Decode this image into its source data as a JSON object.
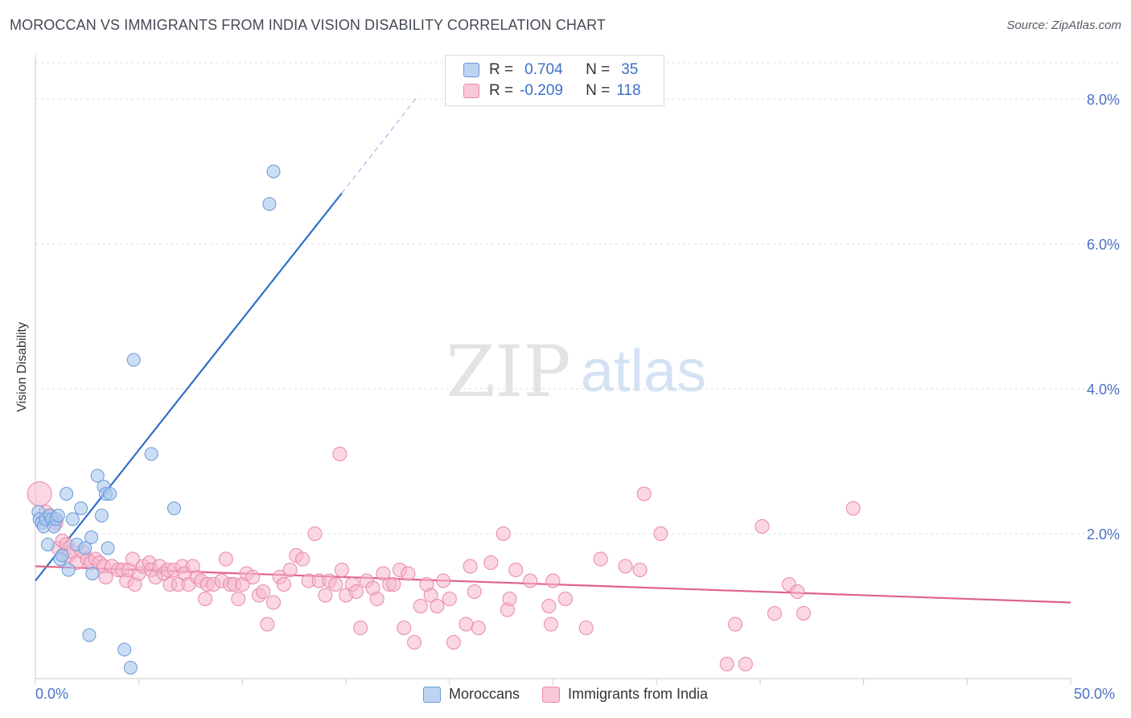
{
  "title": "MOROCCAN VS IMMIGRANTS FROM INDIA VISION DISABILITY CORRELATION CHART",
  "source": "Source: ZipAtlas.com",
  "watermark": {
    "zip": "ZIP",
    "atlas": "atlas"
  },
  "colors": {
    "blue_fill": "#a9c6ee",
    "blue_stroke": "#6b9ad8",
    "blue_line": "#2f6fcc",
    "pink_fill": "#f6b7cb",
    "pink_stroke": "#e889a8",
    "pink_line": "#e0628e",
    "tick_text": "#4a72c4",
    "grid": "#dcdcdc"
  },
  "legend": {
    "rows": [
      {
        "r_label": "R =",
        "r_value": "0.704",
        "n_label": "N =",
        "n_value": "35"
      },
      {
        "r_label": "R =",
        "r_value": "-0.209",
        "n_label": "N =",
        "n_value": "118"
      }
    ]
  },
  "bottom_legend": {
    "series1": "Moroccans",
    "series2": "Immigrants from India"
  },
  "chart_data": {
    "type": "scatter",
    "title": "MOROCCAN VS IMMIGRANTS FROM INDIA VISION DISABILITY CORRELATION CHART",
    "xlabel": "",
    "ylabel": "Vision Disability",
    "xlim": [
      0,
      50
    ],
    "ylim": [
      0,
      8.5
    ],
    "x_tick_labels": [
      "0.0%",
      "50.0%"
    ],
    "y_ticks": [
      2,
      4,
      6,
      8
    ],
    "y_tick_labels": [
      "2.0%",
      "4.0%",
      "6.0%",
      "8.0%"
    ],
    "grid": true,
    "series": [
      {
        "name": "Moroccans",
        "r": 0.704,
        "n": 35,
        "trend": {
          "x0": 0,
          "y0": 1.35,
          "x1": 14.8,
          "y1": 6.7,
          "dash_x1": 18.5,
          "dash_y1": 8.05
        },
        "points": [
          [
            0.15,
            2.3
          ],
          [
            0.2,
            2.2
          ],
          [
            0.3,
            2.15
          ],
          [
            0.4,
            2.1
          ],
          [
            0.5,
            2.2
          ],
          [
            0.6,
            1.85
          ],
          [
            0.7,
            2.25
          ],
          [
            0.8,
            2.2
          ],
          [
            0.9,
            2.1
          ],
          [
            1.0,
            2.2
          ],
          [
            1.1,
            2.25
          ],
          [
            1.2,
            1.65
          ],
          [
            1.3,
            1.7
          ],
          [
            1.5,
            2.55
          ],
          [
            1.6,
            1.5
          ],
          [
            1.8,
            2.2
          ],
          [
            2.0,
            1.85
          ],
          [
            2.2,
            2.35
          ],
          [
            2.4,
            1.8
          ],
          [
            2.6,
            0.6
          ],
          [
            2.7,
            1.95
          ],
          [
            2.75,
            1.45
          ],
          [
            3.0,
            2.8
          ],
          [
            3.2,
            2.25
          ],
          [
            3.3,
            2.65
          ],
          [
            3.4,
            2.55
          ],
          [
            3.5,
            1.8
          ],
          [
            3.6,
            2.55
          ],
          [
            4.3,
            0.4
          ],
          [
            4.6,
            0.15
          ],
          [
            4.75,
            4.4
          ],
          [
            5.6,
            3.1
          ],
          [
            6.7,
            2.35
          ],
          [
            11.3,
            6.55
          ],
          [
            11.5,
            7.0
          ]
        ]
      },
      {
        "name": "Immigrants from India",
        "r": -0.209,
        "n": 118,
        "trend": {
          "x0": 0,
          "y0": 1.55,
          "x1": 50,
          "y1": 1.05
        },
        "points": [
          [
            0.2,
            2.55
          ],
          [
            0.5,
            2.3
          ],
          [
            0.7,
            2.25
          ],
          [
            1.0,
            2.15
          ],
          [
            1.1,
            1.8
          ],
          [
            1.3,
            1.9
          ],
          [
            1.5,
            1.85
          ],
          [
            1.6,
            1.7
          ],
          [
            1.8,
            1.75
          ],
          [
            2.0,
            1.6
          ],
          [
            2.3,
            1.75
          ],
          [
            2.5,
            1.65
          ],
          [
            2.7,
            1.6
          ],
          [
            2.9,
            1.65
          ],
          [
            3.1,
            1.6
          ],
          [
            3.3,
            1.55
          ],
          [
            3.4,
            1.4
          ],
          [
            3.7,
            1.55
          ],
          [
            4.0,
            1.5
          ],
          [
            4.2,
            1.5
          ],
          [
            4.4,
            1.35
          ],
          [
            4.5,
            1.5
          ],
          [
            4.7,
            1.65
          ],
          [
            4.8,
            1.3
          ],
          [
            5.0,
            1.45
          ],
          [
            5.2,
            1.55
          ],
          [
            5.5,
            1.6
          ],
          [
            5.6,
            1.5
          ],
          [
            5.8,
            1.4
          ],
          [
            6.0,
            1.55
          ],
          [
            6.2,
            1.45
          ],
          [
            6.4,
            1.5
          ],
          [
            6.5,
            1.3
          ],
          [
            6.7,
            1.5
          ],
          [
            6.9,
            1.3
          ],
          [
            7.1,
            1.55
          ],
          [
            7.2,
            1.45
          ],
          [
            7.4,
            1.3
          ],
          [
            7.6,
            1.55
          ],
          [
            7.8,
            1.4
          ],
          [
            8.0,
            1.35
          ],
          [
            8.2,
            1.1
          ],
          [
            8.3,
            1.3
          ],
          [
            8.6,
            1.3
          ],
          [
            9.0,
            1.35
          ],
          [
            9.2,
            1.65
          ],
          [
            9.4,
            1.3
          ],
          [
            9.6,
            1.3
          ],
          [
            9.8,
            1.1
          ],
          [
            10.0,
            1.3
          ],
          [
            10.2,
            1.45
          ],
          [
            10.5,
            1.4
          ],
          [
            10.8,
            1.15
          ],
          [
            11.0,
            1.2
          ],
          [
            11.2,
            0.75
          ],
          [
            11.5,
            1.05
          ],
          [
            11.8,
            1.4
          ],
          [
            12.0,
            1.3
          ],
          [
            12.3,
            1.5
          ],
          [
            12.6,
            1.7
          ],
          [
            12.9,
            1.65
          ],
          [
            13.2,
            1.35
          ],
          [
            13.5,
            2.0
          ],
          [
            13.7,
            1.35
          ],
          [
            14.0,
            1.15
          ],
          [
            14.2,
            1.35
          ],
          [
            14.5,
            1.3
          ],
          [
            14.8,
            1.5
          ],
          [
            15.0,
            1.15
          ],
          [
            15.3,
            1.3
          ],
          [
            15.5,
            1.2
          ],
          [
            15.7,
            0.7
          ],
          [
            16.0,
            1.35
          ],
          [
            16.3,
            1.25
          ],
          [
            16.5,
            1.1
          ],
          [
            16.8,
            1.45
          ],
          [
            17.1,
            1.3
          ],
          [
            17.3,
            1.3
          ],
          [
            17.6,
            1.5
          ],
          [
            17.8,
            0.7
          ],
          [
            18.0,
            1.45
          ],
          [
            18.3,
            0.5
          ],
          [
            18.6,
            1.0
          ],
          [
            18.9,
            1.3
          ],
          [
            19.1,
            1.15
          ],
          [
            19.4,
            1.0
          ],
          [
            19.7,
            1.35
          ],
          [
            20.0,
            1.1
          ],
          [
            20.2,
            0.5
          ],
          [
            20.8,
            0.75
          ],
          [
            21.0,
            1.55
          ],
          [
            21.2,
            1.2
          ],
          [
            21.4,
            0.7
          ],
          [
            22.0,
            1.6
          ],
          [
            22.8,
            0.95
          ],
          [
            22.9,
            1.1
          ],
          [
            23.2,
            1.5
          ],
          [
            23.9,
            1.35
          ],
          [
            24.8,
            1.0
          ],
          [
            24.9,
            0.75
          ],
          [
            25.0,
            1.35
          ],
          [
            25.6,
            1.1
          ],
          [
            26.6,
            0.7
          ],
          [
            27.3,
            1.65
          ],
          [
            28.5,
            1.55
          ],
          [
            29.2,
            1.5
          ],
          [
            30.2,
            2.0
          ],
          [
            33.4,
            0.2
          ],
          [
            33.8,
            0.75
          ],
          [
            34.3,
            0.2
          ],
          [
            35.1,
            2.1
          ],
          [
            35.7,
            0.9
          ],
          [
            36.4,
            1.3
          ],
          [
            36.8,
            1.2
          ],
          [
            37.1,
            0.9
          ],
          [
            39.5,
            2.35
          ],
          [
            14.7,
            3.1
          ],
          [
            22.6,
            2.0
          ],
          [
            29.4,
            2.55
          ]
        ]
      }
    ]
  }
}
